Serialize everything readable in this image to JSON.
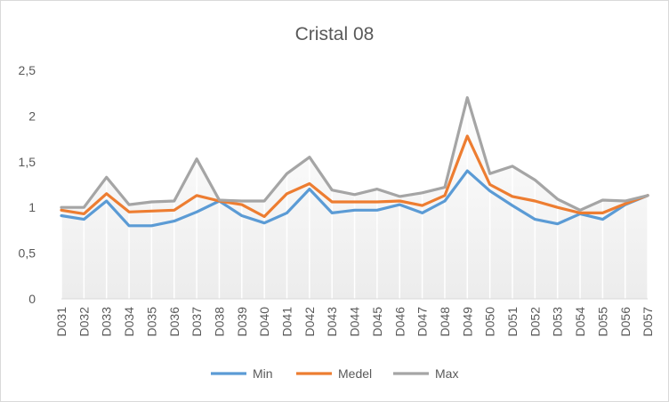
{
  "chart_data": {
    "type": "line",
    "title": "Cristal  08",
    "xlabel": "",
    "ylabel": "",
    "ylim": [
      0,
      2.5
    ],
    "ytick_labels": [
      "0",
      "0,5",
      "1",
      "1,5",
      "2",
      "2,5"
    ],
    "grid": false,
    "legend_position": "bottom",
    "categories": [
      "D031",
      "D032",
      "D033",
      "D034",
      "D035",
      "D036",
      "D037",
      "D038",
      "D039",
      "D040",
      "D041",
      "D042",
      "D043",
      "D044",
      "D045",
      "D046",
      "D047",
      "D048",
      "D049",
      "D050",
      "D051",
      "D052",
      "D053",
      "D054",
      "D055",
      "D056",
      "D057"
    ],
    "series": [
      {
        "name": "Min",
        "color": "#5b9bd5",
        "values": [
          0.91,
          0.87,
          1.07,
          0.8,
          0.8,
          0.85,
          0.95,
          1.07,
          0.91,
          0.83,
          0.94,
          1.2,
          0.94,
          0.97,
          0.97,
          1.03,
          0.94,
          1.07,
          1.4,
          1.18,
          1.02,
          0.87,
          0.82,
          0.93,
          0.87,
          1.03,
          1.13
        ]
      },
      {
        "name": "Medel",
        "color": "#ed7d31",
        "values": [
          0.97,
          0.93,
          1.15,
          0.95,
          0.96,
          0.97,
          1.13,
          1.07,
          1.03,
          0.9,
          1.15,
          1.26,
          1.06,
          1.06,
          1.06,
          1.07,
          1.02,
          1.13,
          1.78,
          1.25,
          1.12,
          1.07,
          1.0,
          0.94,
          0.94,
          1.04,
          1.13
        ]
      },
      {
        "name": "Max",
        "color": "#a5a5a5",
        "values": [
          1.0,
          1.0,
          1.33,
          1.03,
          1.06,
          1.07,
          1.53,
          1.08,
          1.07,
          1.07,
          1.37,
          1.55,
          1.19,
          1.14,
          1.2,
          1.12,
          1.16,
          1.22,
          2.2,
          1.37,
          1.45,
          1.3,
          1.09,
          0.97,
          1.08,
          1.07,
          1.13
        ]
      }
    ]
  }
}
